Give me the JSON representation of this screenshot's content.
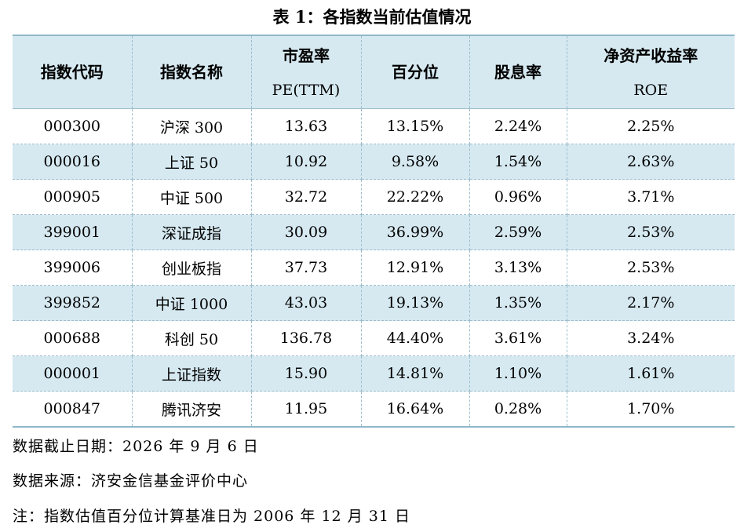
{
  "title": "表 1：各指数当前估值情况",
  "table": {
    "headers": [
      {
        "line1": "指数代码",
        "line2": ""
      },
      {
        "line1": "指数名称",
        "line2": ""
      },
      {
        "line1": "市盈率",
        "line2": "PE(TTM)"
      },
      {
        "line1": "百分位",
        "line2": ""
      },
      {
        "line1": "股息率",
        "line2": ""
      },
      {
        "line1": "净资产收益率",
        "line2": "ROE"
      }
    ],
    "rows": [
      [
        "000300",
        "沪深 300",
        "13.63",
        "13.15%",
        "2.24%",
        "2.25%"
      ],
      [
        "000016",
        "上证 50",
        "10.92",
        "9.58%",
        "1.54%",
        "2.63%"
      ],
      [
        "000905",
        "中证 500",
        "32.72",
        "22.22%",
        "0.96%",
        "3.71%"
      ],
      [
        "399001",
        "深证成指",
        "30.09",
        "36.99%",
        "2.59%",
        "2.53%"
      ],
      [
        "399006",
        "创业板指",
        "37.73",
        "12.91%",
        "3.13%",
        "2.53%"
      ],
      [
        "399852",
        "中证 1000",
        "43.03",
        "19.13%",
        "1.35%",
        "2.17%"
      ],
      [
        "000688",
        "科创 50",
        "136.78",
        "44.40%",
        "3.61%",
        "3.24%"
      ],
      [
        "000001",
        "上证指数",
        "15.90",
        "14.81%",
        "1.10%",
        "1.61%"
      ],
      [
        "000847",
        "腾讯济安",
        "11.95",
        "16.64%",
        "0.28%",
        "1.70%"
      ]
    ]
  },
  "notes": {
    "date": "数据截止日期：2026 年 9 月 6 日",
    "source": "数据来源：济安金信基金评价中心",
    "remark": "注：指数估值百分位计算基准日为 2006 年 12 月 31 日"
  }
}
